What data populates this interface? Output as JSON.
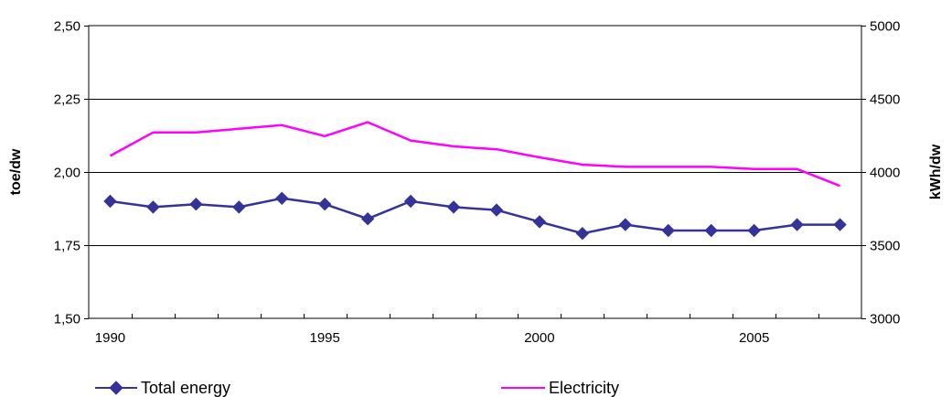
{
  "chart_data": {
    "type": "line",
    "x": [
      1990,
      1991,
      1992,
      1993,
      1994,
      1995,
      1996,
      1997,
      1998,
      1999,
      2000,
      2001,
      2002,
      2003,
      2004,
      2005,
      2006,
      2007
    ],
    "x_tick_labels": [
      "1990",
      "1995",
      "2000",
      "2005"
    ],
    "series": [
      {
        "name": "Total energy",
        "axis": "left",
        "color": "#333399",
        "marker": "diamond",
        "values": [
          1.9,
          1.88,
          1.89,
          1.88,
          1.91,
          1.89,
          1.84,
          1.9,
          1.88,
          1.87,
          1.83,
          1.79,
          1.82,
          1.8,
          1.8,
          1.8,
          1.82,
          1.82
        ]
      },
      {
        "name": "Electricity",
        "axis": "right",
        "color": "#FF00FF",
        "marker": "none",
        "values": [
          4110,
          4270,
          4270,
          4295,
          4320,
          4245,
          4340,
          4215,
          4175,
          4155,
          4100,
          4050,
          4035,
          4035,
          4035,
          4020,
          4020,
          3905
        ]
      }
    ],
    "y_left": {
      "label": "toe/dw",
      "ylim": [
        1.5,
        2.5
      ],
      "ticks": [
        1.5,
        1.75,
        2.0,
        2.25,
        2.5
      ],
      "tick_labels": [
        "1,50",
        "1,75",
        "2,00",
        "2,25",
        "2,50"
      ]
    },
    "y_right": {
      "label": "kWh/dw",
      "ylim": [
        3000,
        5000
      ],
      "ticks": [
        3000,
        3500,
        4000,
        4500,
        5000
      ],
      "tick_labels": [
        "3000",
        "3500",
        "4000",
        "4500",
        "5000"
      ]
    },
    "grid": true,
    "legend_position": "bottom"
  }
}
